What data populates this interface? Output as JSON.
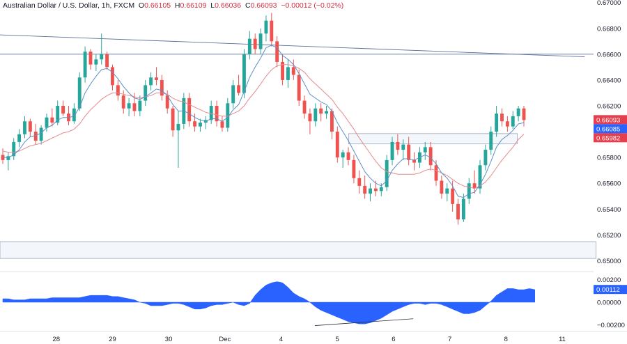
{
  "header": {
    "symbol": "Australian Dollar / U.S. Dollar, 1h, FXCM",
    "o_label": "O",
    "o": "0.66105",
    "h_label": "H",
    "h": "0.66109",
    "l_label": "L",
    "l": "0.66036",
    "c_label": "C",
    "c": "0.66093",
    "change": "−0.00012 (−0.02%)"
  },
  "colors": {
    "up": "#26a69a",
    "down": "#ef5350",
    "ma_fast": "#5b8fc9",
    "ma_slow": "#e58a8f",
    "trendline": "#5a6f96",
    "zone_fill": "#f3f6fb",
    "zone_border": "#9aa6b8",
    "osc": "#2962ff",
    "tag_red": "#e53e4d",
    "tag_blue": "#2962ff"
  },
  "price_tags": {
    "last": "0.66093",
    "fast_ma": "0.66085",
    "slow_ma": "0.65982"
  },
  "osc_tag": "0.00112",
  "chart_data": [
    {
      "type": "candlestick",
      "title": "",
      "ylim": [
        0.6497,
        0.6702
      ],
      "y_ticks": [
        "0.67000",
        "0.66800",
        "0.66600",
        "0.66400",
        "0.66200",
        "0.66000",
        "0.65800",
        "0.65600",
        "0.65400",
        "0.65200",
        "0.65000"
      ],
      "x_ticks": [
        "28",
        "29",
        "30",
        "Dec",
        "4",
        "5",
        "6",
        "7",
        "8",
        "11"
      ],
      "x_tick_pos": [
        1,
        2,
        3,
        4,
        5,
        6,
        7,
        8,
        9,
        10
      ],
      "candles": [
        [
          0.6582,
          0.6587,
          0.6575,
          0.6578
        ],
        [
          0.6578,
          0.6584,
          0.657,
          0.6581
        ],
        [
          0.6581,
          0.6595,
          0.6578,
          0.6592
        ],
        [
          0.6592,
          0.6602,
          0.6588,
          0.6598
        ],
        [
          0.6598,
          0.6612,
          0.6595,
          0.6608
        ],
        [
          0.6608,
          0.661,
          0.6596,
          0.66
        ],
        [
          0.66,
          0.6606,
          0.659,
          0.6593
        ],
        [
          0.6593,
          0.6605,
          0.659,
          0.6603
        ],
        [
          0.6603,
          0.6614,
          0.66,
          0.6611
        ],
        [
          0.6611,
          0.6618,
          0.6604,
          0.6607
        ],
        [
          0.6607,
          0.6624,
          0.6605,
          0.662
        ],
        [
          0.662,
          0.6624,
          0.6612,
          0.6614
        ],
        [
          0.6614,
          0.662,
          0.6605,
          0.6608
        ],
        [
          0.6608,
          0.6622,
          0.6606,
          0.6618
        ],
        [
          0.6618,
          0.6646,
          0.6616,
          0.6642
        ],
        [
          0.6642,
          0.6666,
          0.6638,
          0.6662
        ],
        [
          0.6662,
          0.6664,
          0.6648,
          0.6652
        ],
        [
          0.6652,
          0.666,
          0.6647,
          0.6656
        ],
        [
          0.6656,
          0.6676,
          0.6652,
          0.666
        ],
        [
          0.666,
          0.6662,
          0.6648,
          0.665
        ],
        [
          0.665,
          0.6652,
          0.6632,
          0.6636
        ],
        [
          0.6636,
          0.664,
          0.6624,
          0.6628
        ],
        [
          0.6628,
          0.6632,
          0.6614,
          0.6618
        ],
        [
          0.6618,
          0.6626,
          0.6612,
          0.6622
        ],
        [
          0.6622,
          0.663,
          0.6612,
          0.6616
        ],
        [
          0.6616,
          0.6628,
          0.6612,
          0.6624
        ],
        [
          0.6624,
          0.664,
          0.662,
          0.6636
        ],
        [
          0.6636,
          0.6646,
          0.6632,
          0.6642
        ],
        [
          0.6642,
          0.665,
          0.6636,
          0.664
        ],
        [
          0.664,
          0.6644,
          0.6624,
          0.6628
        ],
        [
          0.6628,
          0.6632,
          0.6614,
          0.6618
        ],
        [
          0.6618,
          0.662,
          0.6596,
          0.6601
        ],
        [
          0.6601,
          0.6616,
          0.6572,
          0.6606
        ],
        [
          0.6606,
          0.663,
          0.6602,
          0.6626
        ],
        [
          0.6626,
          0.663,
          0.6604,
          0.6608
        ],
        [
          0.6608,
          0.6614,
          0.66,
          0.6604
        ],
        [
          0.6604,
          0.661,
          0.66,
          0.6607
        ],
        [
          0.6607,
          0.6612,
          0.6602,
          0.6609
        ],
        [
          0.6609,
          0.6624,
          0.6606,
          0.662
        ],
        [
          0.662,
          0.6624,
          0.6604,
          0.6608
        ],
        [
          0.6608,
          0.6612,
          0.66,
          0.6603
        ],
        [
          0.6603,
          0.6626,
          0.66,
          0.6622
        ],
        [
          0.6622,
          0.664,
          0.6618,
          0.6636
        ],
        [
          0.6636,
          0.6644,
          0.6628,
          0.663
        ],
        [
          0.663,
          0.6664,
          0.6626,
          0.666
        ],
        [
          0.666,
          0.6678,
          0.6656,
          0.6672
        ],
        [
          0.6672,
          0.6676,
          0.666,
          0.6664
        ],
        [
          0.6664,
          0.668,
          0.666,
          0.6676
        ],
        [
          0.6676,
          0.669,
          0.667,
          0.6686
        ],
        [
          0.6686,
          0.6692,
          0.6666,
          0.667
        ],
        [
          0.667,
          0.6674,
          0.665,
          0.6654
        ],
        [
          0.6654,
          0.666,
          0.6636,
          0.664
        ],
        [
          0.664,
          0.6656,
          0.6634,
          0.665
        ],
        [
          0.665,
          0.6656,
          0.664,
          0.6644
        ],
        [
          0.6644,
          0.6648,
          0.662,
          0.6624
        ],
        [
          0.6624,
          0.6628,
          0.661,
          0.6614
        ],
        [
          0.6614,
          0.6618,
          0.6598,
          0.6608
        ],
        [
          0.6608,
          0.6622,
          0.6604,
          0.6618
        ],
        [
          0.6618,
          0.6622,
          0.6608,
          0.6614
        ],
        [
          0.6614,
          0.662,
          0.661,
          0.6616
        ],
        [
          0.6616,
          0.6618,
          0.6594,
          0.66
        ],
        [
          0.66,
          0.6604,
          0.6576,
          0.658
        ],
        [
          0.658,
          0.6586,
          0.6572,
          0.6584
        ],
        [
          0.6584,
          0.6588,
          0.6574,
          0.6578
        ],
        [
          0.6578,
          0.6582,
          0.656,
          0.6564
        ],
        [
          0.6564,
          0.657,
          0.6552,
          0.6558
        ],
        [
          0.6558,
          0.6566,
          0.6548,
          0.6552
        ],
        [
          0.6552,
          0.656,
          0.6546,
          0.6556
        ],
        [
          0.6556,
          0.6562,
          0.655,
          0.6554
        ],
        [
          0.6554,
          0.656,
          0.655,
          0.6557
        ],
        [
          0.6557,
          0.6582,
          0.6554,
          0.6578
        ],
        [
          0.6578,
          0.6596,
          0.6574,
          0.6592
        ],
        [
          0.6592,
          0.6598,
          0.6582,
          0.6586
        ],
        [
          0.6586,
          0.6594,
          0.6578,
          0.659
        ],
        [
          0.659,
          0.6596,
          0.6574,
          0.6578
        ],
        [
          0.6578,
          0.6584,
          0.657,
          0.6576
        ],
        [
          0.6576,
          0.6588,
          0.6572,
          0.6584
        ],
        [
          0.6584,
          0.6592,
          0.6578,
          0.6588
        ],
        [
          0.6588,
          0.6592,
          0.657,
          0.6574
        ],
        [
          0.6574,
          0.6578,
          0.6558,
          0.6562
        ],
        [
          0.6562,
          0.6566,
          0.6548,
          0.6552
        ],
        [
          0.6552,
          0.656,
          0.6546,
          0.6556
        ],
        [
          0.6556,
          0.6562,
          0.6538,
          0.6544
        ],
        [
          0.6544,
          0.6548,
          0.6528,
          0.6532
        ],
        [
          0.6532,
          0.6552,
          0.653,
          0.6548
        ],
        [
          0.6548,
          0.6564,
          0.6544,
          0.656
        ],
        [
          0.656,
          0.657,
          0.6552,
          0.6556
        ],
        [
          0.6556,
          0.6578,
          0.6552,
          0.6574
        ],
        [
          0.6574,
          0.659,
          0.657,
          0.6586
        ],
        [
          0.6586,
          0.6604,
          0.6582,
          0.66
        ],
        [
          0.66,
          0.662,
          0.6596,
          0.6614
        ],
        [
          0.6614,
          0.6618,
          0.6604,
          0.6608
        ],
        [
          0.6608,
          0.6612,
          0.66,
          0.6604
        ],
        [
          0.6604,
          0.6616,
          0.6602,
          0.6612
        ],
        [
          0.6612,
          0.662,
          0.6608,
          0.6618
        ],
        [
          0.6618,
          0.662,
          0.6604,
          0.6609
        ]
      ],
      "ma_fast": [
        0.658,
        0.658,
        0.6582,
        0.6586,
        0.6592,
        0.6596,
        0.6597,
        0.6599,
        0.6603,
        0.6605,
        0.6609,
        0.6611,
        0.6611,
        0.6612,
        0.6619,
        0.663,
        0.6637,
        0.6643,
        0.6648,
        0.6649,
        0.6646,
        0.6641,
        0.6635,
        0.663,
        0.6626,
        0.6625,
        0.6627,
        0.663,
        0.6633,
        0.6632,
        0.6628,
        0.6621,
        0.6616,
        0.6616,
        0.6614,
        0.6611,
        0.6609,
        0.6608,
        0.661,
        0.661,
        0.6608,
        0.6611,
        0.6617,
        0.6621,
        0.6631,
        0.6642,
        0.665,
        0.6657,
        0.6665,
        0.6667,
        0.6665,
        0.6659,
        0.6656,
        0.6652,
        0.6645,
        0.6637,
        0.6629,
        0.6626,
        0.6623,
        0.6621,
        0.6616,
        0.6607,
        0.66,
        0.6593,
        0.6585,
        0.6577,
        0.6569,
        0.6564,
        0.656,
        0.6558,
        0.6562,
        0.657,
        0.6575,
        0.6579,
        0.6579,
        0.6578,
        0.658,
        0.6582,
        0.658,
        0.6575,
        0.6568,
        0.6564,
        0.6558,
        0.655,
        0.6549,
        0.6552,
        0.6553,
        0.6559,
        0.6567,
        0.6577,
        0.6588,
        0.6594,
        0.6597,
        0.6601,
        0.6606,
        0.6607
      ],
      "ma_slow": [
        0.6585,
        0.6584,
        0.6584,
        0.6585,
        0.6587,
        0.6589,
        0.659,
        0.6591,
        0.6593,
        0.6595,
        0.6597,
        0.6599,
        0.66,
        0.6602,
        0.6606,
        0.6612,
        0.6617,
        0.6621,
        0.6625,
        0.6628,
        0.663,
        0.663,
        0.6629,
        0.6628,
        0.6627,
        0.6626,
        0.6627,
        0.6628,
        0.663,
        0.663,
        0.6629,
        0.6626,
        0.6624,
        0.6623,
        0.6621,
        0.6619,
        0.6617,
        0.6615,
        0.6614,
        0.6613,
        0.6612,
        0.6612,
        0.6614,
        0.6616,
        0.662,
        0.6626,
        0.6631,
        0.6637,
        0.6643,
        0.6648,
        0.6651,
        0.6652,
        0.6652,
        0.6651,
        0.6649,
        0.6646,
        0.6641,
        0.6637,
        0.6633,
        0.6629,
        0.6625,
        0.6619,
        0.6614,
        0.6608,
        0.6602,
        0.6595,
        0.6589,
        0.6583,
        0.6577,
        0.6572,
        0.6569,
        0.6568,
        0.6567,
        0.6567,
        0.6567,
        0.6567,
        0.6568,
        0.657,
        0.6571,
        0.657,
        0.6568,
        0.6566,
        0.6563,
        0.656,
        0.6558,
        0.6557,
        0.6556,
        0.6558,
        0.6561,
        0.6566,
        0.6572,
        0.6578,
        0.6583,
        0.6588,
        0.6594,
        0.6598
      ],
      "trendline": [
        [
          0.0,
          0.6675
        ],
        [
          10.4,
          0.6658
        ]
      ],
      "hline": 0.666,
      "zones": [
        {
          "from": 6.2,
          "to": 9.2,
          "low": 0.65905,
          "high": 0.65985
        },
        {
          "from": 0,
          "to": 10.6,
          "low": 0.65018,
          "high": 0.65148
        }
      ]
    },
    {
      "type": "area",
      "title": "",
      "ylim": [
        -0.0022,
        0.0022
      ],
      "y_ticks": [
        "0.00200",
        "0.00000",
        "−0.00200"
      ],
      "values": [
        0.0003,
        0.0003,
        0.0002,
        0.0002,
        0.0002,
        0.0003,
        0.0003,
        0.0003,
        0.0003,
        0.0004,
        0.0004,
        0.0004,
        0.0004,
        0.0004,
        0.0004,
        0.0005,
        0.0006,
        0.0006,
        0.0006,
        0.0006,
        0.0005,
        0.0005,
        0.0004,
        0.0003,
        0.0002,
        0.0,
        -0.0001,
        -0.0003,
        -0.0003,
        -0.0003,
        -0.0002,
        -0.0001,
        -0.0001,
        -0.0002,
        -0.0004,
        -0.0006,
        -0.0006,
        -0.0005,
        -0.0003,
        -0.0002,
        -0.0002,
        -0.0001,
        0.0,
        -0.0002,
        -0.0003,
        -0.0001,
        0.0006,
        0.0011,
        0.0015,
        0.0017,
        0.0018,
        0.0017,
        0.0013,
        0.0008,
        0.0005,
        0.0003,
        0.0,
        -0.0004,
        -0.0007,
        -0.0009,
        -0.0011,
        -0.0013,
        -0.0015,
        -0.0017,
        -0.0018,
        -0.0019,
        -0.0019,
        -0.0018,
        -0.0016,
        -0.0014,
        -0.0011,
        -0.0008,
        -0.0006,
        -0.0004,
        -0.0002,
        -0.0001,
        -0.0001,
        -0.0002,
        -0.0001,
        -0.0001,
        -0.0002,
        -0.0004,
        -0.0006,
        -0.0008,
        -0.001,
        -0.001,
        -0.0009,
        -0.0007,
        -0.0003,
        0.0001,
        0.0006,
        0.0009,
        0.0012,
        0.0012,
        0.0011,
        0.0011,
        0.0012,
        0.0011
      ],
      "divergence_line": [
        [
          5.6,
          -0.00205
        ],
        [
          7.35,
          -0.00145
        ]
      ]
    }
  ]
}
